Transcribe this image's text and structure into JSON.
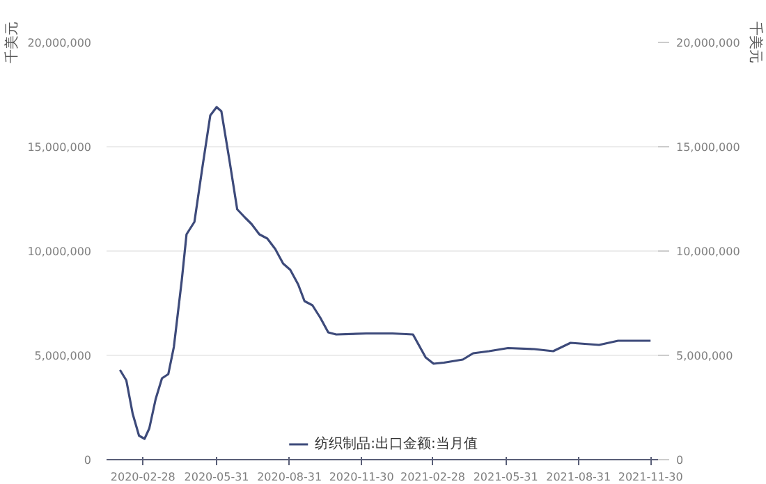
{
  "chart_data": {
    "type": "line",
    "ylabel": "千美元",
    "y2label": "千美元",
    "x": [
      "2020-01-30",
      "2020-02-07",
      "2020-02-15",
      "2020-02-23",
      "2020-03-01",
      "2020-03-07",
      "2020-03-15",
      "2020-03-23",
      "2020-03-31",
      "2020-04-07",
      "2020-04-17",
      "2020-04-23",
      "2020-05-03",
      "2020-05-13",
      "2020-05-23",
      "2020-05-31",
      "2020-06-06",
      "2020-06-16",
      "2020-06-26",
      "2020-07-06",
      "2020-07-14",
      "2020-07-24",
      "2020-08-03",
      "2020-08-13",
      "2020-08-23",
      "2020-09-01",
      "2020-09-11",
      "2020-09-19",
      "2020-09-29",
      "2020-10-09",
      "2020-10-19",
      "2020-10-29",
      "2020-12-06",
      "2021-01-08",
      "2021-02-03",
      "2021-02-19",
      "2021-03-01",
      "2021-03-14",
      "2021-04-07",
      "2021-04-20",
      "2021-05-10",
      "2021-06-03",
      "2021-07-06",
      "2021-07-30",
      "2021-08-21",
      "2021-09-26",
      "2021-10-20",
      "2021-11-30"
    ],
    "series": [
      {
        "name": "纺织制品:出口金额:当月值",
        "color": "#3d4a7a",
        "values": [
          4300000,
          3800000,
          2200000,
          1150000,
          1000000,
          1500000,
          2900000,
          3900000,
          4100000,
          5400000,
          8600000,
          10800000,
          11400000,
          14000000,
          16500000,
          16900000,
          16700000,
          14400000,
          12000000,
          11600000,
          11300000,
          10800000,
          10600000,
          10100000,
          9400000,
          9100000,
          8400000,
          7600000,
          7400000,
          6800000,
          6100000,
          6000000,
          6050000,
          6050000,
          6000000,
          4900000,
          4600000,
          4650000,
          4800000,
          5100000,
          5200000,
          5350000,
          5300000,
          5200000,
          5600000,
          5500000,
          5700000,
          5700000
        ]
      }
    ],
    "xlim": [
      "2020-01-13",
      "2021-12-13"
    ],
    "xticks": [
      "2020-02-28",
      "2020-05-31",
      "2020-08-31",
      "2020-11-30",
      "2021-02-28",
      "2021-05-31",
      "2021-08-31",
      "2021-11-30"
    ],
    "ylim": [
      0,
      20000000
    ],
    "yticks": [
      {
        "value": 0,
        "label": "0"
      },
      {
        "value": 5000000,
        "label": "5,000,000"
      },
      {
        "value": 10000000,
        "label": "10,000,000"
      },
      {
        "value": 15000000,
        "label": "15,000,000"
      },
      {
        "value": 20000000,
        "label": "20,000,000"
      }
    ],
    "y2lim": [
      0,
      20000000
    ],
    "y2ticks": [
      {
        "value": 0,
        "label": "0"
      },
      {
        "value": 5000000,
        "label": "5,000,000"
      },
      {
        "value": 10000000,
        "label": "10,000,000"
      },
      {
        "value": 15000000,
        "label": "15,000,000"
      },
      {
        "value": 20000000,
        "label": "20,000,000"
      }
    ],
    "grid": "y",
    "legend": "bottom",
    "marker": "none",
    "line_style": "solid"
  }
}
